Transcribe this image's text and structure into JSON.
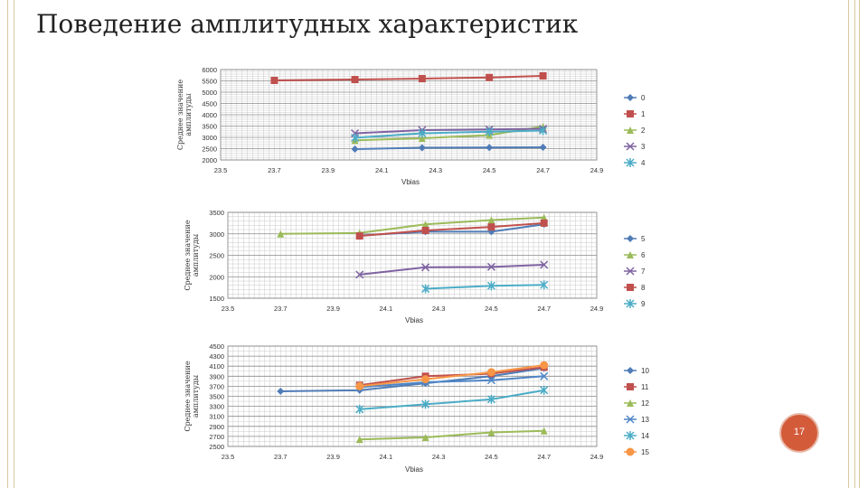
{
  "title": "Поведение амплитудных характеристик",
  "page_number": "17",
  "colors": {
    "0": "#4f7cb7",
    "1": "#c0504d",
    "2": "#9bbb59",
    "3": "#7f63a2",
    "4": "#4bacc6",
    "5": "#4f7cb7",
    "6": "#9bbb59",
    "7": "#7f63a2",
    "8": "#c0504d",
    "9": "#4bacc6",
    "10": "#4f7cb7",
    "11": "#c0504d",
    "12": "#9bbb59",
    "13": "#4f86c6",
    "14": "#4bacc6",
    "15": "#f79646"
  },
  "chart_data": [
    {
      "type": "line",
      "xlabel": "Vbias",
      "ylabel": "Среднее значение амплитуды",
      "xlim": [
        23.5,
        24.9
      ],
      "ylim": [
        2000,
        6000
      ],
      "xticks": [
        "23.5",
        "23.7",
        "23.9",
        "24.1",
        "24.3",
        "24.5",
        "24.7",
        "24.9"
      ],
      "yticks": [
        "2000",
        "2500",
        "3000",
        "3500",
        "4000",
        "4500",
        "5000",
        "5500",
        "6000"
      ],
      "series": [
        {
          "name": "0",
          "marker": "diamond",
          "x": [
            24.0,
            24.25,
            24.5,
            24.7
          ],
          "y": [
            2480,
            2540,
            2550,
            2560
          ]
        },
        {
          "name": "1",
          "marker": "square",
          "x": [
            23.7,
            24.0,
            24.25,
            24.5,
            24.7
          ],
          "y": [
            5520,
            5560,
            5600,
            5650,
            5720
          ]
        },
        {
          "name": "2",
          "marker": "triangle",
          "x": [
            24.0,
            24.25,
            24.5,
            24.7
          ],
          "y": [
            2870,
            2960,
            3100,
            3480
          ]
        },
        {
          "name": "3",
          "marker": "x",
          "x": [
            24.0,
            24.25,
            24.5,
            24.7
          ],
          "y": [
            3180,
            3320,
            3350,
            3380
          ]
        },
        {
          "name": "4",
          "marker": "star",
          "x": [
            24.0,
            24.25,
            24.5,
            24.7
          ],
          "y": [
            2980,
            3180,
            3250,
            3300
          ]
        }
      ]
    },
    {
      "type": "line",
      "xlabel": "Vbias",
      "ylabel": "Среднее значение амплитуды",
      "xlim": [
        23.5,
        24.9
      ],
      "ylim": [
        1500,
        3500
      ],
      "xticks": [
        "23.5",
        "23.7",
        "23.9",
        "24.1",
        "24.3",
        "24.5",
        "24.7",
        "24.9"
      ],
      "yticks": [
        "1500",
        "2000",
        "2500",
        "3000",
        "3500"
      ],
      "series": [
        {
          "name": "5",
          "marker": "diamond",
          "x": [
            24.0,
            24.25,
            24.5,
            24.7
          ],
          "y": [
            2960,
            3050,
            3050,
            3220
          ]
        },
        {
          "name": "6",
          "marker": "triangle",
          "x": [
            23.7,
            24.0,
            24.25,
            24.5,
            24.7
          ],
          "y": [
            3000,
            3020,
            3220,
            3320,
            3380
          ]
        },
        {
          "name": "7",
          "marker": "x",
          "x": [
            24.0,
            24.25,
            24.5,
            24.7
          ],
          "y": [
            2050,
            2220,
            2230,
            2280
          ]
        },
        {
          "name": "8",
          "marker": "square",
          "x": [
            24.0,
            24.25,
            24.5,
            24.7
          ],
          "y": [
            2950,
            3080,
            3160,
            3250
          ]
        },
        {
          "name": "9",
          "marker": "star",
          "x": [
            24.25,
            24.5,
            24.7
          ],
          "y": [
            1720,
            1790,
            1810
          ]
        }
      ]
    },
    {
      "type": "line",
      "xlabel": "Vbias",
      "ylabel": "Среднее значение амплитуды",
      "xlim": [
        23.5,
        24.9
      ],
      "ylim": [
        2500,
        4500
      ],
      "xticks": [
        "23.5",
        "23.7",
        "23.9",
        "24.1",
        "24.3",
        "24.5",
        "24.7",
        "24.9"
      ],
      "yticks": [
        "2500",
        "2700",
        "2900",
        "3100",
        "3300",
        "3500",
        "3700",
        "3900",
        "4100",
        "4300",
        "4500"
      ],
      "series": [
        {
          "name": "10",
          "marker": "diamond",
          "x": [
            23.7,
            24.0,
            24.25,
            24.5,
            24.7
          ],
          "y": [
            3600,
            3620,
            3760,
            3900,
            4060
          ]
        },
        {
          "name": "11",
          "marker": "square",
          "x": [
            24.0,
            24.25,
            24.5,
            24.7
          ],
          "y": [
            3720,
            3900,
            3950,
            4080
          ]
        },
        {
          "name": "12",
          "marker": "triangle",
          "x": [
            24.0,
            24.25,
            24.5,
            24.7
          ],
          "y": [
            2640,
            2680,
            2780,
            2810
          ]
        },
        {
          "name": "13",
          "marker": "x",
          "x": [
            24.0,
            24.25,
            24.5,
            24.7
          ],
          "y": [
            3680,
            3780,
            3820,
            3900
          ]
        },
        {
          "name": "14",
          "marker": "star",
          "x": [
            24.0,
            24.25,
            24.5,
            24.7
          ],
          "y": [
            3240,
            3340,
            3440,
            3620
          ]
        },
        {
          "name": "15",
          "marker": "circle",
          "x": [
            24.0,
            24.25,
            24.5,
            24.7
          ],
          "y": [
            3700,
            3840,
            3980,
            4120
          ]
        }
      ]
    }
  ]
}
